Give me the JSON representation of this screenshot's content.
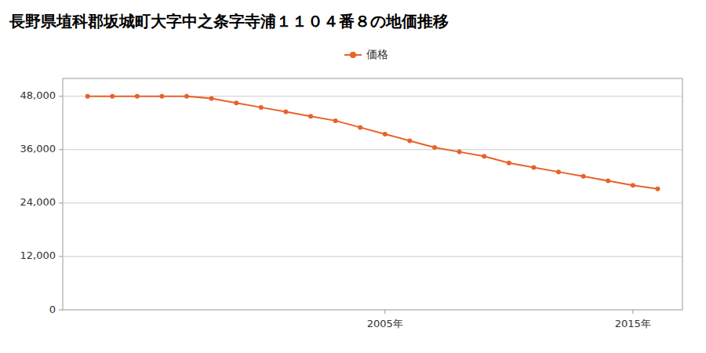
{
  "chart_data": {
    "type": "line",
    "title": "長野県埴科郡坂城町大字中之条字寺浦１１０４番８の地価推移",
    "x": [
      1993,
      1994,
      1995,
      1996,
      1997,
      1998,
      1999,
      2000,
      2001,
      2002,
      2003,
      2004,
      2005,
      2006,
      2007,
      2008,
      2009,
      2010,
      2011,
      2012,
      2013,
      2014,
      2015,
      2016
    ],
    "series": [
      {
        "name": "価格",
        "color": "#e8622a",
        "marker": "circle",
        "values": [
          48000,
          48000,
          48000,
          48000,
          48000,
          47500,
          46500,
          45500,
          44500,
          43500,
          42500,
          41000,
          39500,
          38000,
          36500,
          35500,
          34500,
          33000,
          32000,
          31000,
          30000,
          29000,
          28000,
          27200
        ]
      }
    ],
    "xlim": [
      1992,
      2017
    ],
    "xticks": [
      {
        "value": 2005,
        "label": "2005年"
      },
      {
        "value": 2015,
        "label": "2015年"
      }
    ],
    "ylim": [
      0,
      52000
    ],
    "yticks": [
      0,
      {
        "value": 12000,
        "label": "12,000"
      },
      {
        "value": 24000,
        "label": "24,000"
      },
      {
        "value": 36000,
        "label": "36,000"
      },
      {
        "value": 48000,
        "label": "48,000"
      }
    ],
    "grid": "y",
    "legend": "top"
  }
}
